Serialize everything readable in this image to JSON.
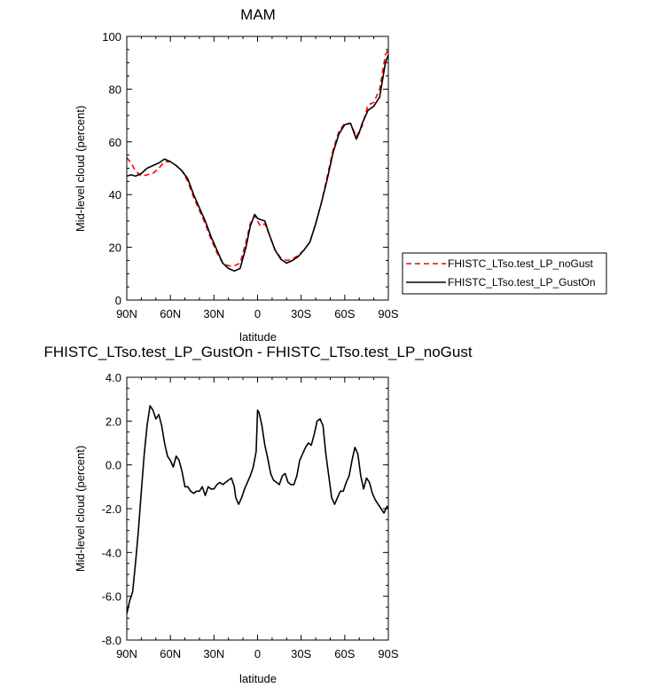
{
  "chart_data": [
    {
      "type": "line",
      "title": "MAM",
      "xlabel": "latitude",
      "ylabel": "Mid-level cloud (percent)",
      "x_tick_labels": [
        "90N",
        "60N",
        "30N",
        "0",
        "30S",
        "60S",
        "90S"
      ],
      "x_tick_values": [
        -90,
        -60,
        -30,
        0,
        30,
        60,
        90
      ],
      "y_tick_labels": [
        "0",
        "20",
        "40",
        "60",
        "80",
        "100"
      ],
      "y_tick_values": [
        0,
        20,
        40,
        60,
        80,
        100
      ],
      "xlim": [
        -90,
        90
      ],
      "ylim": [
        0,
        100
      ],
      "legend_position": "right",
      "series": [
        {
          "name": "FHISTC_LTso.test_LP_noGust",
          "color": "#ff0000",
          "dash": "dashed",
          "x": [
            -90,
            -87,
            -84,
            -80,
            -76,
            -72,
            -68,
            -64,
            -60,
            -56,
            -52,
            -48,
            -44,
            -40,
            -36,
            -32,
            -28,
            -24,
            -20,
            -16,
            -12,
            -8,
            -5,
            -2,
            0,
            2,
            5,
            8,
            12,
            16,
            20,
            24,
            28,
            32,
            36,
            40,
            44,
            48,
            52,
            56,
            60,
            64,
            68,
            70,
            72,
            76,
            80,
            84,
            88,
            90
          ],
          "y": [
            54,
            52,
            49,
            47,
            47.5,
            48,
            50,
            52.5,
            52.5,
            51,
            49,
            45,
            39,
            34,
            29,
            23,
            18,
            14,
            13,
            13,
            14,
            22,
            29,
            32,
            30,
            28,
            29,
            25,
            19,
            16,
            15,
            15.5,
            17,
            19,
            22,
            29,
            37,
            47,
            57,
            64,
            67,
            67,
            62,
            64,
            66,
            74,
            75,
            80,
            93,
            95
          ]
        },
        {
          "name": "FHISTC_LTso.test_LP_GustOn",
          "color": "#000000",
          "dash": "solid",
          "x": [
            -90,
            -87,
            -84,
            -80,
            -76,
            -72,
            -68,
            -64,
            -60,
            -56,
            -52,
            -48,
            -44,
            -40,
            -36,
            -32,
            -28,
            -24,
            -20,
            -16,
            -12,
            -8,
            -5,
            -2,
            0,
            2,
            5,
            8,
            12,
            16,
            20,
            24,
            28,
            32,
            36,
            40,
            44,
            48,
            52,
            56,
            60,
            64,
            68,
            70,
            72,
            76,
            80,
            84,
            88,
            90
          ],
          "y": [
            47,
            47.5,
            47,
            48,
            50,
            51,
            52,
            53.5,
            52.5,
            51,
            49,
            46,
            40,
            35,
            30,
            24,
            19,
            14,
            12,
            11,
            12,
            20,
            28,
            32.5,
            31,
            30.5,
            30,
            25,
            19,
            15.5,
            14,
            15,
            16.5,
            19,
            22,
            29,
            37,
            46,
            56,
            63,
            66.5,
            67,
            61,
            63.5,
            67,
            72,
            73.5,
            77,
            90,
            93
          ]
        }
      ]
    },
    {
      "type": "line",
      "title": "FHISTC_LTso.test_LP_GustOn - FHISTC_LTso.test_LP_noGust",
      "xlabel": "latitude",
      "ylabel": "Mid-level cloud (percent)",
      "x_tick_labels": [
        "90N",
        "60N",
        "30N",
        "0",
        "30S",
        "60S",
        "90S"
      ],
      "x_tick_values": [
        -90,
        -60,
        -30,
        0,
        30,
        60,
        90
      ],
      "y_tick_labels": [
        "-8.0",
        "-6.0",
        "-4.0",
        "-2.0",
        "0.0",
        "2.0",
        "4.0"
      ],
      "y_tick_values": [
        -8,
        -6,
        -4,
        -2,
        0,
        2,
        4
      ],
      "xlim": [
        -90,
        90
      ],
      "ylim": [
        -8,
        4
      ],
      "series": [
        {
          "color": "#000000",
          "dash": "solid",
          "x": [
            -90,
            -88,
            -86,
            -84,
            -82,
            -80,
            -78,
            -76,
            -74,
            -72,
            -70,
            -68,
            -66,
            -64,
            -62,
            -60,
            -58,
            -56,
            -54,
            -52,
            -50,
            -48,
            -46,
            -44,
            -42,
            -40,
            -38,
            -36,
            -34,
            -32,
            -30,
            -28,
            -26,
            -24,
            -22,
            -20,
            -18,
            -16,
            -15,
            -13,
            -11,
            -9,
            -7,
            -5,
            -3,
            -1,
            0,
            1,
            3,
            5,
            7,
            9,
            11,
            13,
            15,
            17,
            19,
            21,
            23,
            25,
            27,
            29,
            31,
            33,
            35,
            37,
            39,
            41,
            43,
            45,
            47,
            49,
            51,
            53,
            55,
            57,
            59,
            61,
            63,
            65,
            67,
            69,
            71,
            73,
            75,
            77,
            79,
            81,
            83,
            85,
            87,
            89,
            90
          ],
          "y": [
            -6.8,
            -6.2,
            -5.8,
            -4.5,
            -3.0,
            -1.2,
            0.5,
            1.8,
            2.7,
            2.5,
            2.1,
            2.3,
            1.8,
            1.0,
            0.4,
            0.2,
            -0.1,
            0.4,
            0.2,
            -0.3,
            -1.0,
            -1.0,
            -1.2,
            -1.3,
            -1.2,
            -1.2,
            -1.0,
            -1.4,
            -1.0,
            -1.1,
            -1.1,
            -0.9,
            -0.8,
            -0.9,
            -0.8,
            -0.7,
            -0.6,
            -1.0,
            -1.5,
            -1.8,
            -1.5,
            -1.1,
            -0.8,
            -0.5,
            -0.1,
            0.6,
            2.5,
            2.4,
            1.8,
            0.9,
            0.3,
            -0.4,
            -0.7,
            -0.8,
            -0.9,
            -0.5,
            -0.4,
            -0.8,
            -0.9,
            -0.9,
            -0.5,
            0.2,
            0.5,
            0.8,
            1.0,
            0.9,
            1.4,
            2.0,
            2.1,
            1.8,
            0.5,
            -0.5,
            -1.5,
            -1.8,
            -1.5,
            -1.2,
            -1.2,
            -0.8,
            -0.5,
            0.2,
            0.8,
            0.5,
            -0.5,
            -1.1,
            -0.6,
            -0.8,
            -1.3,
            -1.6,
            -1.8,
            -2.0,
            -2.2,
            -1.9,
            -2.0
          ]
        }
      ]
    }
  ]
}
